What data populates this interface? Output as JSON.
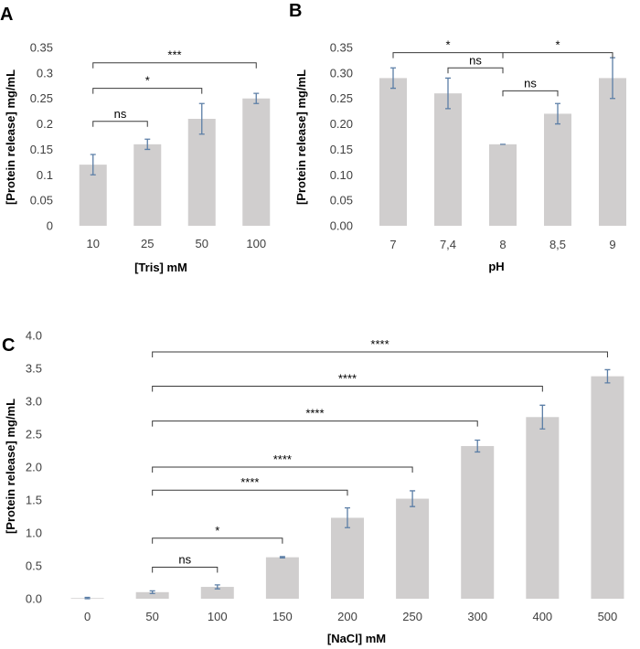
{
  "chart_data": [
    {
      "id": "A",
      "type": "bar",
      "panel_label": "A",
      "categories": [
        "10",
        "25",
        "50",
        "100"
      ],
      "values": [
        0.12,
        0.16,
        0.21,
        0.25
      ],
      "errors": [
        0.02,
        0.01,
        0.03,
        0.01
      ],
      "ylim": [
        0,
        0.35
      ],
      "yticks": [
        "0",
        "0.05",
        "0.1",
        "0.15",
        "0.2",
        "0.25",
        "0.3",
        "0.35"
      ],
      "ylabel": "[Protein release] mg/mL",
      "xlabel": "[Tris] mM",
      "comparisons": [
        {
          "from": 0,
          "to": 1,
          "label": "ns",
          "level": 0.205
        },
        {
          "from": 0,
          "to": 2,
          "label": "*",
          "level": 0.27
        },
        {
          "from": 0,
          "to": 3,
          "label": "***",
          "level": 0.32
        }
      ]
    },
    {
      "id": "B",
      "type": "bar",
      "panel_label": "B",
      "categories": [
        "7",
        "7,4",
        "8",
        "8,5",
        "9"
      ],
      "values": [
        0.29,
        0.26,
        0.16,
        0.22,
        0.29
      ],
      "errors": [
        0.02,
        0.03,
        0.0,
        0.02,
        0.04
      ],
      "ylim": [
        0,
        0.35
      ],
      "yticks": [
        "0.00",
        "0.05",
        "0.10",
        "0.15",
        "0.20",
        "0.25",
        "0.30",
        "0.35"
      ],
      "ylabel": "[Protein release] mg/mL",
      "xlabel": "pH",
      "comparisons": [
        {
          "from": 0,
          "to": 2,
          "label": "*",
          "level": 0.34
        },
        {
          "from": 1,
          "to": 2,
          "label": "ns",
          "level": 0.31
        },
        {
          "from": 2,
          "to": 3,
          "label": "ns",
          "level": 0.265
        },
        {
          "from": 2,
          "to": 4,
          "label": "*",
          "level": 0.34
        }
      ]
    },
    {
      "id": "C",
      "type": "bar",
      "panel_label": "C",
      "categories": [
        "0",
        "50",
        "100",
        "150",
        "200",
        "250",
        "300",
        "400",
        "500"
      ],
      "values": [
        0.01,
        0.1,
        0.18,
        0.63,
        1.23,
        1.52,
        2.32,
        2.76,
        3.38
      ],
      "errors": [
        0.01,
        0.02,
        0.03,
        0.01,
        0.15,
        0.12,
        0.09,
        0.18,
        0.1
      ],
      "ylim": [
        0,
        4.0
      ],
      "yticks": [
        "0.0",
        "0.5",
        "1.0",
        "1.5",
        "2.0",
        "2.5",
        "3.0",
        "3.5",
        "4.0"
      ],
      "ylabel": "[Protein release] mg/mL",
      "xlabel": "[NaCl] mM",
      "comparisons": [
        {
          "from": 1,
          "to": 2,
          "label": "ns",
          "level": 0.48
        },
        {
          "from": 1,
          "to": 3,
          "label": "*",
          "level": 0.92
        },
        {
          "from": 1,
          "to": 4,
          "label": "****",
          "level": 1.65
        },
        {
          "from": 1,
          "to": 5,
          "label": "****",
          "level": 2.0
        },
        {
          "from": 1,
          "to": 6,
          "label": "****",
          "level": 2.7
        },
        {
          "from": 1,
          "to": 7,
          "label": "****",
          "level": 3.23
        },
        {
          "from": 1,
          "to": 8,
          "label": "****",
          "level": 3.75
        }
      ]
    }
  ],
  "colors": {
    "bar": "#d0cece",
    "error_bar": "#5b7ea6",
    "bracket": "#3a3a3a"
  }
}
